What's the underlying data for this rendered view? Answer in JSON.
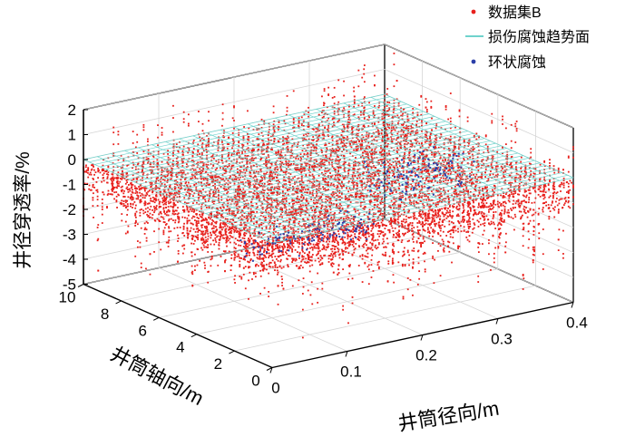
{
  "chart_data": {
    "type": "scatter3d",
    "title": "",
    "xlabel": "井筒径向/m",
    "ylabel": "井筒轴向/m",
    "zlabel": "井径穿透率/%",
    "xlim": [
      0,
      0.4
    ],
    "ylim": [
      0,
      10
    ],
    "zlim": [
      -5,
      2
    ],
    "xticks": [
      "0",
      "0.1",
      "0.2",
      "0.3",
      "0.4"
    ],
    "yticks": [
      "0",
      "2",
      "4",
      "6",
      "8",
      "10"
    ],
    "zticks": [
      "-5",
      "-4",
      "-3",
      "-2",
      "-1",
      "0",
      "1",
      "2"
    ],
    "grid": true,
    "legend_position": "top-right",
    "colors": {
      "dataset": "#e8201c",
      "trend": "#6fd3cc",
      "corrosion": "#2b3ea8"
    },
    "series": [
      {
        "name": "数据集B",
        "marker": "point",
        "description_points": [
          [
            0.0,
            0.0,
            0.0
          ],
          [
            0.4,
            0.0,
            0.0
          ],
          [
            0.4,
            10.0,
            0.0
          ],
          [
            0.0,
            10.0,
            0.0
          ],
          [
            0.05,
            8.0,
            -1.5
          ],
          [
            0.1,
            6.0,
            -2.5
          ],
          [
            0.2,
            3.0,
            -4.0
          ],
          [
            0.3,
            1.0,
            -3.0
          ],
          [
            0.35,
            5.0,
            -2.0
          ],
          [
            0.15,
            9.0,
            1.0
          ],
          [
            0.25,
            7.0,
            1.5
          ],
          [
            0.3,
            9.5,
            2.0
          ]
        ]
      },
      {
        "name": "损伤腐蚀趋势面",
        "marker": "surface",
        "z_value": 0
      },
      {
        "name": "环状腐蚀",
        "marker": "point",
        "description_points": [
          [
            0.05,
            2.0,
            -1.0
          ],
          [
            0.1,
            2.0,
            -1.5
          ],
          [
            0.15,
            2.0,
            -1.2
          ],
          [
            0.3,
            4.5,
            -1.0
          ],
          [
            0.33,
            5.0,
            -1.4
          ],
          [
            0.36,
            5.5,
            -0.8
          ]
        ]
      }
    ]
  }
}
